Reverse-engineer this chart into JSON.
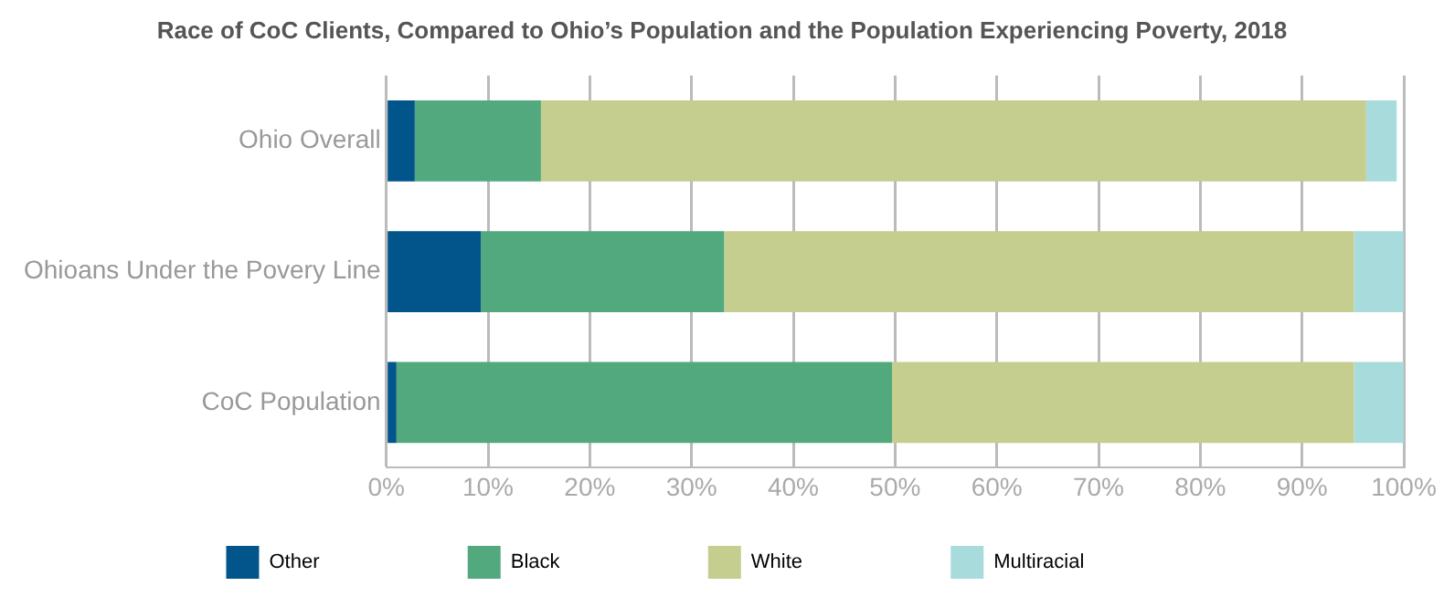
{
  "chart_data": {
    "type": "bar",
    "orientation": "horizontal",
    "stacked": true,
    "title": "Race of CoC Clients, Compared to Ohio’s Population and the Population Experiencing Poverty, 2018",
    "categories": [
      "Ohio Overall",
      "Ohioans Under the Povery Line",
      "CoC Population"
    ],
    "series": [
      {
        "name": "Other",
        "color": "#02558b",
        "values": [
          2.8,
          9.3,
          1.0
        ]
      },
      {
        "name": "Black",
        "color": "#52a97e",
        "values": [
          12.4,
          23.9,
          48.7
        ]
      },
      {
        "name": "White",
        "color": "#c5cd8f",
        "values": [
          81.1,
          61.9,
          45.4
        ]
      },
      {
        "name": "Multiracial",
        "color": "#a8dbdc",
        "values": [
          3.0,
          4.9,
          4.9
        ]
      }
    ],
    "xlim": [
      0,
      100
    ],
    "xticks": [
      {
        "value": 0,
        "label": "0%"
      },
      {
        "value": 10,
        "label": "10%"
      },
      {
        "value": 20,
        "label": "20%"
      },
      {
        "value": 30,
        "label": "30%"
      },
      {
        "value": 40,
        "label": "40%"
      },
      {
        "value": 50,
        "label": "50%"
      },
      {
        "value": 60,
        "label": "60%"
      },
      {
        "value": 70,
        "label": "70%"
      },
      {
        "value": 80,
        "label": "80%"
      },
      {
        "value": 90,
        "label": "90%"
      },
      {
        "value": 100,
        "label": "100%"
      }
    ],
    "grid": "x",
    "legend": "bottom"
  }
}
